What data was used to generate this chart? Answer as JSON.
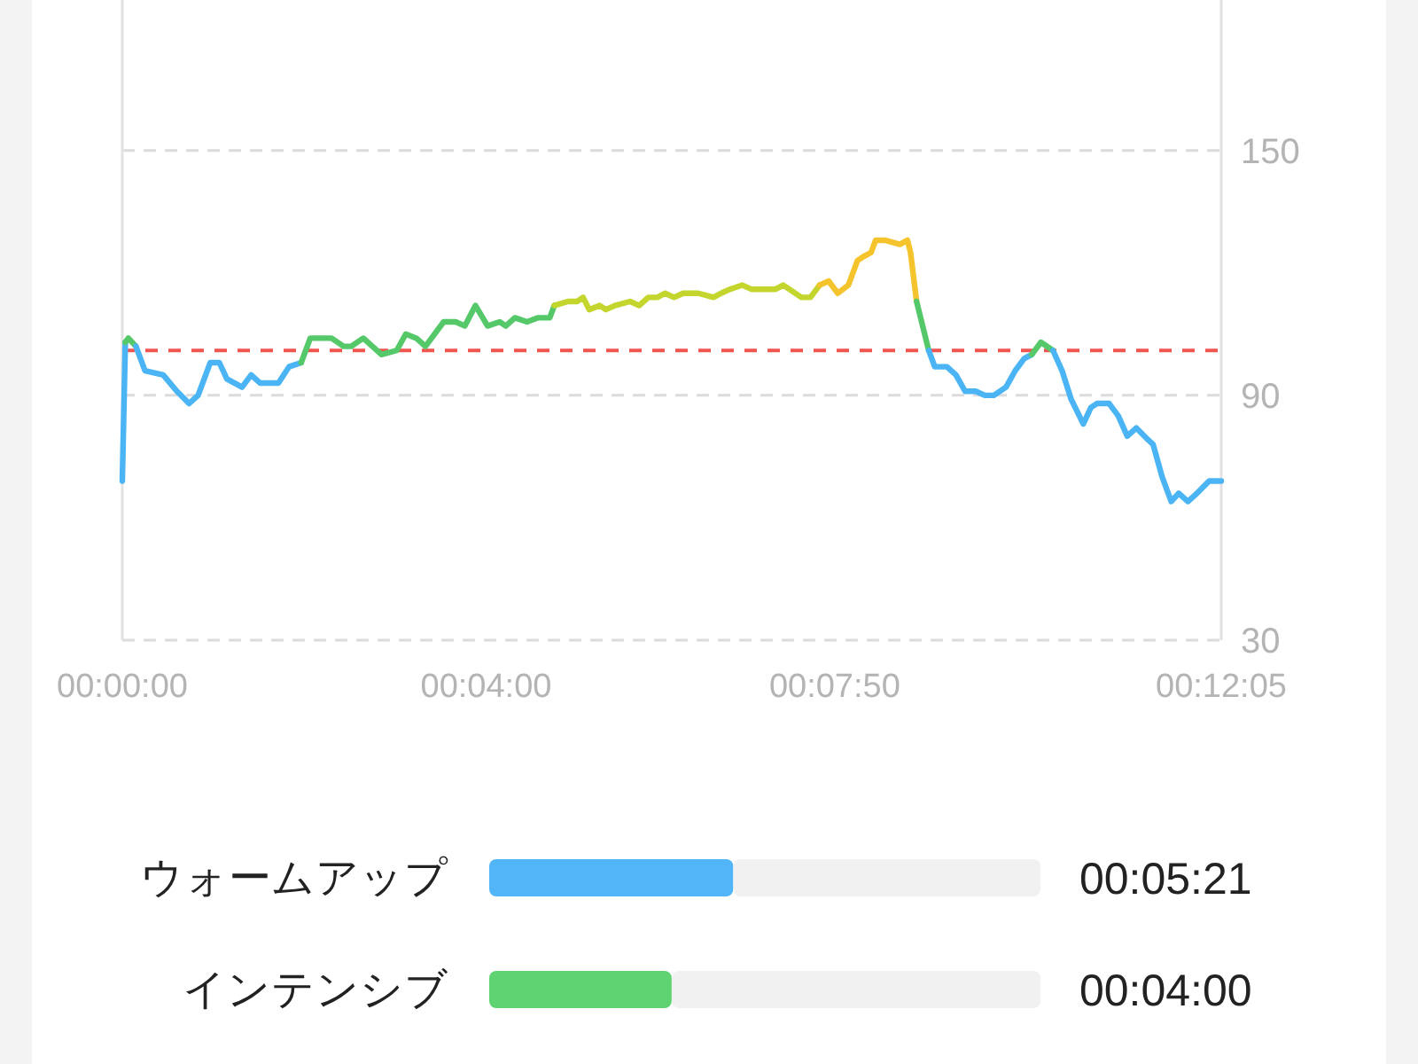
{
  "chart_data": [
    {
      "type": "line",
      "xlim": [
        0,
        725
      ],
      "xticks": [
        {
          "value": 0,
          "label": "00:00:00"
        },
        {
          "value": 240,
          "label": "00:04:00"
        },
        {
          "value": 470,
          "label": "00:07:50"
        },
        {
          "value": 725,
          "label": "00:12:05"
        }
      ],
      "ylim": [
        30,
        186
      ],
      "yticks": [
        30,
        90,
        150
      ],
      "grid": "y",
      "ref_lines": [
        {
          "axis": "y",
          "value": 101,
          "color": "#f0554f",
          "line_style": "dashed"
        }
      ],
      "series": [
        {
          "color": "#4bb4f4",
          "x": [
            0,
            2
          ],
          "values": [
            69,
            103
          ]
        },
        {
          "color": "#55c96a",
          "x": [
            2,
            4,
            9
          ],
          "values": [
            103,
            104,
            102
          ]
        },
        {
          "color": "#4bb4f4",
          "x": [
            9,
            15,
            27,
            36,
            44,
            50,
            58,
            64,
            69,
            79,
            85,
            91,
            103,
            110,
            118
          ],
          "values": [
            102,
            96,
            95,
            91,
            88,
            90,
            98,
            98,
            94,
            92,
            95,
            93,
            93,
            97,
            98
          ]
        },
        {
          "color": "#55c96a",
          "x": [
            118,
            124,
            130,
            138,
            146,
            151,
            159,
            171,
            181,
            187,
            194,
            200,
            212,
            220,
            226,
            233,
            241,
            249,
            253,
            259,
            267,
            274,
            282,
            285
          ],
          "values": [
            98,
            104,
            104,
            104,
            102,
            102,
            104,
            100,
            101,
            105,
            104,
            102,
            108,
            108,
            107,
            112,
            107,
            108,
            107,
            109,
            108,
            109,
            109,
            112
          ]
        },
        {
          "color": "#c4d52e",
          "x": [
            285,
            294,
            300,
            304,
            308,
            315,
            319,
            325,
            335,
            341,
            347,
            353,
            358,
            364,
            370,
            380,
            390,
            395,
            401,
            409,
            415,
            421,
            427,
            431,
            436,
            440,
            448,
            454,
            460
          ],
          "values": [
            112,
            113,
            113,
            114,
            111,
            112,
            111,
            112,
            113,
            112,
            114,
            114,
            115,
            114,
            115,
            115,
            114,
            115,
            116,
            117,
            116,
            116,
            116,
            116,
            117,
            116,
            114,
            114,
            117
          ]
        },
        {
          "color": "#f5c42d",
          "x": [
            460,
            466,
            472,
            479,
            485,
            489,
            494,
            497,
            503,
            513,
            518,
            520,
            524
          ],
          "values": [
            117,
            118,
            115,
            117,
            123,
            124,
            125,
            128,
            128,
            127,
            128,
            125,
            113
          ]
        },
        {
          "color": "#55c96a",
          "x": [
            524,
            528,
            532
          ],
          "values": [
            113,
            107,
            101
          ]
        },
        {
          "color": "#4bb4f4",
          "x": [
            532,
            536,
            544,
            550,
            556,
            563,
            569,
            575,
            583,
            589,
            595,
            600
          ],
          "values": [
            101,
            97,
            97,
            95,
            91,
            91,
            90,
            90,
            92,
            96,
            99,
            100
          ]
        },
        {
          "color": "#55c96a",
          "x": [
            600,
            606,
            614
          ],
          "values": [
            100,
            103,
            101
          ]
        },
        {
          "color": "#4bb4f4",
          "x": [
            614,
            620,
            626,
            634,
            639,
            643,
            651,
            657,
            663,
            669,
            677,
            680,
            686,
            692,
            697,
            703,
            709,
            717,
            725
          ],
          "values": [
            101,
            96,
            89,
            83,
            87,
            88,
            88,
            85,
            80,
            82,
            79,
            78,
            70,
            64,
            66,
            64,
            66,
            69,
            69
          ]
        }
      ]
    },
    {
      "type": "bar",
      "orientation": "horizontal",
      "stacked": true,
      "categories": [
        "ウォームアップ",
        "インテンシブ"
      ],
      "tick_labels": "y",
      "series": [
        {
          "colors": [
            "#51b5f8",
            "#5fd372"
          ],
          "values": [
            321,
            240
          ],
          "value_labels": [
            "00:05:21",
            "00:04:00"
          ]
        },
        {
          "color": "#f1f1f1",
          "values": [
            404,
            485
          ]
        }
      ]
    }
  ]
}
